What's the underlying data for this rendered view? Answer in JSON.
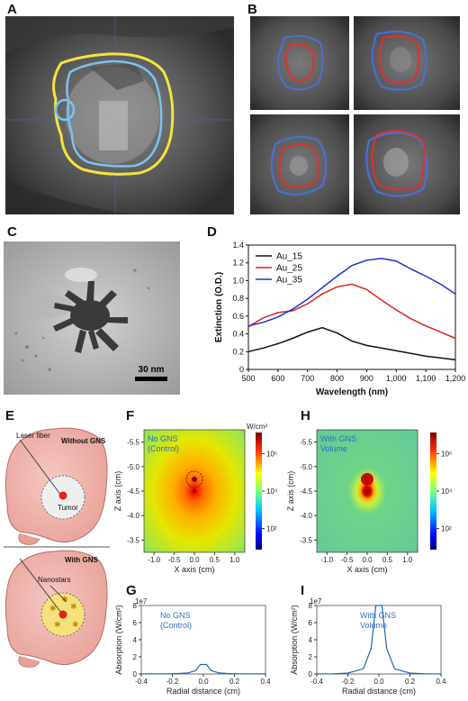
{
  "panels": {
    "a": {
      "label": "A"
    },
    "b": {
      "label": "B"
    },
    "c": {
      "label": "C",
      "scalebar": "30 nm"
    },
    "d": {
      "label": "D"
    },
    "e": {
      "label": "E",
      "without_title": "Without GNS",
      "with_title": "With GNS",
      "laser_label": "Laser fiber",
      "tumor_label": "Tumor",
      "nanostars_label": "Nanostars"
    },
    "f": {
      "label": "F",
      "note_line1": "No GNS",
      "note_line2": "(Control)",
      "cbar_unit": "W/cm²"
    },
    "h": {
      "label": "H",
      "note_line1": "With GNS",
      "note_line2": "Volume"
    },
    "g": {
      "label": "G",
      "note_line1": "No GNS",
      "note_line2": "(Control)",
      "sci": "1e7"
    },
    "i": {
      "label": "I",
      "note_line1": "With GNS",
      "note_line2": "Volume",
      "sci": "1e7"
    }
  },
  "chart_data": [
    {
      "id": "D",
      "type": "line",
      "xlabel": "Wavelength (nm)",
      "ylabel": "Extinction (O.D.)",
      "xlim": [
        500,
        1200
      ],
      "ylim": [
        0,
        1.4
      ],
      "xticks": [
        "500",
        "600",
        "700",
        "800",
        "900",
        "1,000",
        "1,100",
        "1,200"
      ],
      "yticks": [
        "0",
        "0.2",
        "0.4",
        "0.6",
        "0.8",
        "1.0",
        "1.2",
        "1.4"
      ],
      "legend_position": "top-left",
      "x": [
        500,
        550,
        600,
        650,
        700,
        750,
        800,
        850,
        900,
        950,
        1000,
        1050,
        1100,
        1150,
        1200
      ],
      "series": [
        {
          "name": "Au_15",
          "color": "#111111",
          "values": [
            0.2,
            0.24,
            0.29,
            0.35,
            0.42,
            0.47,
            0.41,
            0.32,
            0.27,
            0.24,
            0.21,
            0.18,
            0.15,
            0.13,
            0.11
          ]
        },
        {
          "name": "Au_25",
          "color": "#d9261c",
          "values": [
            0.48,
            0.58,
            0.64,
            0.66,
            0.74,
            0.85,
            0.93,
            0.96,
            0.9,
            0.78,
            0.67,
            0.57,
            0.49,
            0.42,
            0.35
          ]
        },
        {
          "name": "Au_35",
          "color": "#1d2fd1",
          "values": [
            0.49,
            0.53,
            0.59,
            0.68,
            0.79,
            0.92,
            1.05,
            1.17,
            1.23,
            1.25,
            1.22,
            1.13,
            1.05,
            0.96,
            0.85
          ]
        }
      ]
    },
    {
      "id": "F",
      "type": "heatmap",
      "xlabel": "X axis (cm)",
      "ylabel": "Z axis (cm)",
      "xticks": [
        "-1.0",
        "-0.5",
        "0.0",
        "0.5",
        "1.0"
      ],
      "yticks": [
        "-5.5",
        "-5.0",
        "-4.5",
        "-4.0",
        "-3.5"
      ],
      "colorbar_ticks": [
        "10⁶",
        "10⁴",
        "10²"
      ]
    },
    {
      "id": "H",
      "type": "heatmap",
      "xlabel": "X axis (cm)",
      "ylabel": "Z axis (cm)",
      "xticks": [
        "-1.0",
        "-0.5",
        "0.0",
        "0.5",
        "1.0"
      ],
      "yticks": [
        "-5.5",
        "-5.0",
        "-4.5",
        "-4.0",
        "-3.5"
      ],
      "colorbar_ticks": [
        "10⁶",
        "10⁴",
        "10²"
      ]
    },
    {
      "id": "G",
      "type": "line",
      "xlabel": "Radial distance (cm)",
      "ylabel": "Absorption (W/cm²)",
      "xlim": [
        -0.4,
        0.4
      ],
      "ylim": [
        0,
        8
      ],
      "xticks": [
        "-0.4",
        "-0.2",
        "0.0",
        "0.2",
        "0.4"
      ],
      "yticks": [
        "0",
        "2",
        "4",
        "6",
        "8"
      ],
      "x": [
        -0.4,
        -0.3,
        -0.2,
        -0.15,
        -0.1,
        -0.05,
        -0.02,
        0.02,
        0.05,
        0.1,
        0.15,
        0.2,
        0.3,
        0.4
      ],
      "values": [
        0.02,
        0.02,
        0.03,
        0.06,
        0.12,
        0.4,
        1.1,
        1.1,
        0.4,
        0.12,
        0.06,
        0.03,
        0.02,
        0.02
      ],
      "color": "#1f66b8"
    },
    {
      "id": "I",
      "type": "line",
      "xlabel": "Radial distance (cm)",
      "ylabel": "Absorption (W/cm²)",
      "xlim": [
        -0.4,
        0.4
      ],
      "ylim": [
        0,
        8
      ],
      "xticks": [
        "-0.4",
        "-0.2",
        "0.0",
        "0.2",
        "0.4"
      ],
      "yticks": [
        "0",
        "2",
        "4",
        "6",
        "8"
      ],
      "x": [
        -0.4,
        -0.3,
        -0.2,
        -0.1,
        -0.05,
        -0.02,
        0.02,
        0.05,
        0.1,
        0.2,
        0.3,
        0.4
      ],
      "values": [
        0.0,
        0.02,
        0.1,
        0.6,
        3.0,
        8.0,
        8.0,
        3.0,
        0.6,
        0.1,
        0.02,
        0.0
      ],
      "color": "#1f66b8"
    }
  ]
}
